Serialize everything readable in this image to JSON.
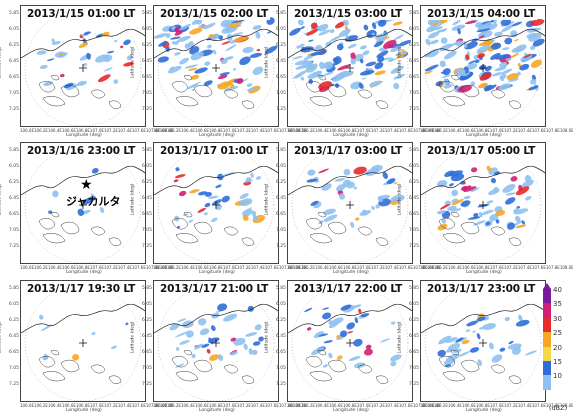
{
  "panels": [
    {
      "title": "2013/1/15 01:00 LT",
      "intensity": 1
    },
    {
      "title": "2013/1/15 02:00 LT",
      "intensity": 3
    },
    {
      "title": "2013/1/15 03:00 LT",
      "intensity": 4
    },
    {
      "title": "2013/1/15 04:00 LT",
      "intensity": 5
    },
    {
      "title": "2013/1/16 23:00 LT",
      "intensity": 0
    },
    {
      "title": "2013/1/17 01:00 LT",
      "intensity": 1
    },
    {
      "title": "2013/1/17 03:00 LT",
      "intensity": 1
    },
    {
      "title": "2013/1/17 05:00 LT",
      "intensity": 2
    },
    {
      "title": "2013/1/17 19:30 LT",
      "intensity": 0
    },
    {
      "title": "2013/1/17 21:00 LT",
      "intensity": 1
    },
    {
      "title": "2013/1/17 22:00 LT",
      "intensity": 1
    },
    {
      "title": "2013/1/17 23:00 LT",
      "intensity": 1
    }
  ],
  "annotation": {
    "label": "ジャカルタ",
    "marker": "★"
  },
  "axes": {
    "ylabel": "Latitude (deg)",
    "xlabel": "Longitude (deg)",
    "yticks": [
      "5.85",
      "6.05",
      "6.25",
      "6.45",
      "6.65",
      "7.05",
      "7.25"
    ],
    "xticks": [
      "106.0E",
      "106.2E",
      "106.4E",
      "106.6E",
      "106.8E",
      "107.0E",
      "107.2E",
      "107.4E",
      "107.6E",
      "107.8E",
      "108.0E"
    ]
  },
  "colorbar": {
    "unit": "(dBZ)",
    "labels": [
      "40",
      "35",
      "30",
      "25",
      "20",
      "15",
      "10"
    ],
    "colors": [
      "#7a1a9a",
      "#d11f73",
      "#e82a2a",
      "#f6a623",
      "#f5d74a",
      "#2f6ed8",
      "#8ec1f0"
    ]
  }
}
